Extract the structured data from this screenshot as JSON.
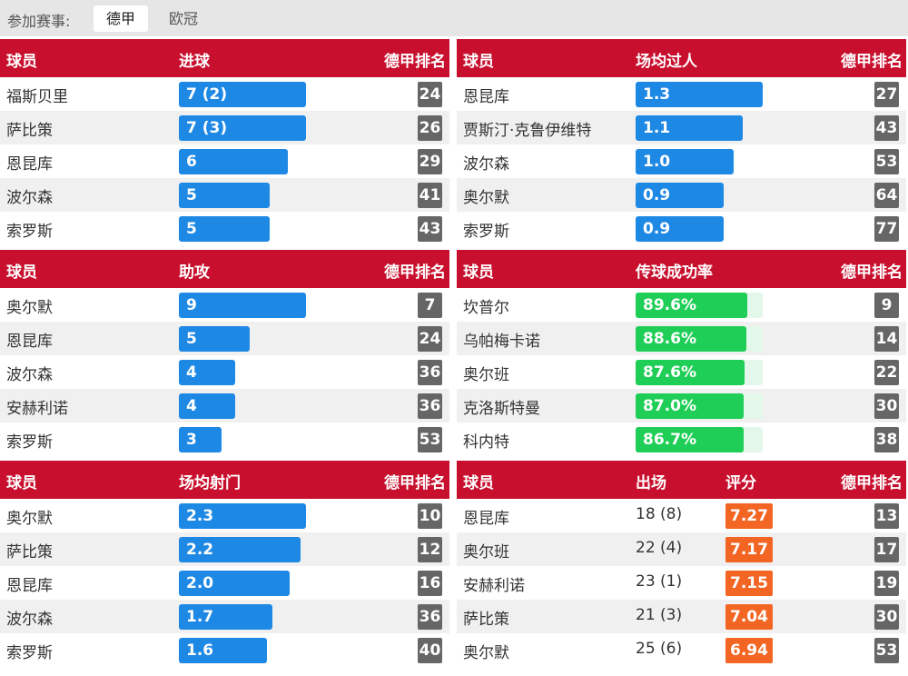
{
  "filter": {
    "label": "参加赛事:",
    "tabs": [
      "德甲",
      "欧冠"
    ],
    "active": 0
  },
  "panels": [
    {
      "headers": [
        "球员",
        "进球",
        "德甲排名"
      ],
      "max": 7,
      "rows": [
        {
          "name": "福斯贝里",
          "value": 7,
          "label": "7 (2)",
          "rank": "24"
        },
        {
          "name": "萨比策",
          "value": 7,
          "label": "7 (3)",
          "rank": "26"
        },
        {
          "name": "恩昆库",
          "value": 6,
          "label": "6",
          "rank": "29"
        },
        {
          "name": "波尔森",
          "value": 5,
          "label": "5",
          "rank": "41"
        },
        {
          "name": "索罗斯",
          "value": 5,
          "label": "5",
          "rank": "43"
        }
      ]
    },
    {
      "headers": [
        "球员",
        "场均过人",
        "德甲排名"
      ],
      "max": 1.3,
      "rows": [
        {
          "name": "恩昆库",
          "value": 1.3,
          "label": "1.3",
          "rank": "27"
        },
        {
          "name": "贾斯汀·克鲁伊维特",
          "value": 1.1,
          "label": "1.1",
          "rank": "43"
        },
        {
          "name": "波尔森",
          "value": 1.0,
          "label": "1.0",
          "rank": "53"
        },
        {
          "name": "奥尔默",
          "value": 0.9,
          "label": "0.9",
          "rank": "64"
        },
        {
          "name": "索罗斯",
          "value": 0.9,
          "label": "0.9",
          "rank": "77"
        }
      ]
    },
    {
      "headers": [
        "球员",
        "助攻",
        "德甲排名"
      ],
      "max": 9,
      "rows": [
        {
          "name": "奥尔默",
          "value": 9,
          "label": "9",
          "rank": "7"
        },
        {
          "name": "恩昆库",
          "value": 5,
          "label": "5",
          "rank": "24"
        },
        {
          "name": "波尔森",
          "value": 4,
          "label": "4",
          "rank": "36"
        },
        {
          "name": "安赫利诺",
          "value": 4,
          "label": "4",
          "rank": "36"
        },
        {
          "name": "索罗斯",
          "value": 3,
          "label": "3",
          "rank": "53"
        }
      ]
    },
    {
      "headers": [
        "球员",
        "传球成功率",
        "德甲排名"
      ],
      "max": 100,
      "rows": [
        {
          "name": "坎普尔",
          "value": 89.6,
          "label": "89.6%",
          "rank": "9"
        },
        {
          "name": "乌帕梅卡诺",
          "value": 88.6,
          "label": "88.6%",
          "rank": "14"
        },
        {
          "name": "奥尔班",
          "value": 87.6,
          "label": "87.6%",
          "rank": "22"
        },
        {
          "name": "克洛斯特曼",
          "value": 87.0,
          "label": "87.0%",
          "rank": "30"
        },
        {
          "name": "科内特",
          "value": 86.7,
          "label": "86.7%",
          "rank": "38"
        }
      ]
    },
    {
      "headers": [
        "球员",
        "场均射门",
        "德甲排名"
      ],
      "max": 2.3,
      "rows": [
        {
          "name": "奥尔默",
          "value": 2.3,
          "label": "2.3",
          "rank": "10"
        },
        {
          "name": "萨比策",
          "value": 2.2,
          "label": "2.2",
          "rank": "12"
        },
        {
          "name": "恩昆库",
          "value": 2.0,
          "label": "2.0",
          "rank": "16"
        },
        {
          "name": "波尔森",
          "value": 1.7,
          "label": "1.7",
          "rank": "36"
        },
        {
          "name": "索罗斯",
          "value": 1.6,
          "label": "1.6",
          "rank": "40"
        }
      ]
    },
    {
      "headers": [
        "球员",
        "出场",
        "评分",
        "德甲排名"
      ],
      "rows": [
        {
          "name": "恩昆库",
          "apps": "18 (8)",
          "rating": "7.27",
          "rank": "13"
        },
        {
          "name": "奥尔班",
          "apps": "22 (4)",
          "rating": "7.17",
          "rank": "17"
        },
        {
          "name": "安赫利诺",
          "apps": "23 (1)",
          "rating": "7.15",
          "rank": "19"
        },
        {
          "name": "萨比策",
          "apps": "21 (3)",
          "rating": "7.04",
          "rank": "30"
        },
        {
          "name": "奥尔默",
          "apps": "25 (6)",
          "rating": "6.94",
          "rank": "53"
        }
      ]
    }
  ],
  "colors": {
    "header": "#c8102e",
    "bar_blue": "#1e88e5",
    "bar_green": "#1fce56",
    "rank_bg": "#666666",
    "rating_bg": "#f26522"
  }
}
